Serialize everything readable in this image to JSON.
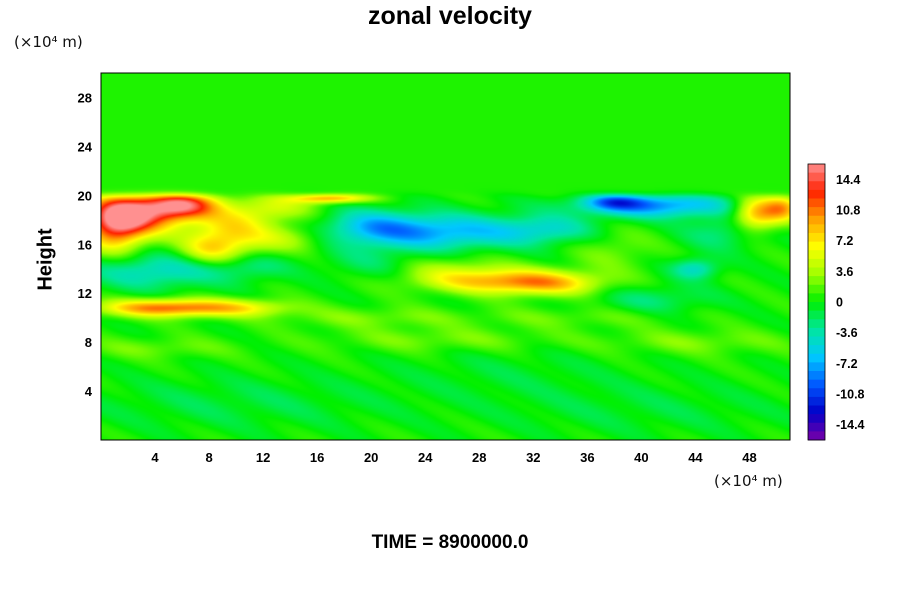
{
  "chart_data": {
    "type": "heatmap",
    "title": "zonal velocity",
    "xlabel": "",
    "ylabel": "Height",
    "x_unit": "(×10⁴ m)",
    "y_unit": "(×10⁴ m)",
    "x_ticks": [
      4,
      8,
      12,
      16,
      20,
      24,
      28,
      32,
      36,
      40,
      44,
      48
    ],
    "y_ticks": [
      4,
      8,
      12,
      16,
      20,
      24,
      28
    ],
    "xlim": [
      0,
      51
    ],
    "ylim": [
      0,
      30
    ],
    "colorbar_ticks": [
      "14.4",
      "10.8",
      "7.2",
      "3.6",
      "0",
      "-3.6",
      "-7.2",
      "-10.8",
      "-14.4"
    ],
    "colorbar_range": [
      -16.2,
      16.2
    ],
    "colorscale": [
      "#7a00a8",
      "#0000c8",
      "#0058ff",
      "#00c8ff",
      "#00e6a0",
      "#00f000",
      "#a0ff00",
      "#ffff00",
      "#ffa000",
      "#ff2000",
      "#ff9090"
    ],
    "background_value": 0.3,
    "features": [
      {
        "x": 2.5,
        "y": 18.5,
        "sx": 2.2,
        "sy": 1.2,
        "v": 13
      },
      {
        "x": 6,
        "y": 19.2,
        "sx": 1.8,
        "sy": 0.8,
        "v": 13
      },
      {
        "x": 1,
        "y": 17.5,
        "sx": 1.5,
        "sy": 1.5,
        "v": 10
      },
      {
        "x": 9.5,
        "y": 17,
        "sx": 2.2,
        "sy": 1.5,
        "v": 7
      },
      {
        "x": 8,
        "y": 15.5,
        "sx": 1.5,
        "sy": 0.8,
        "v": 4
      },
      {
        "x": 14,
        "y": 16.5,
        "sx": 2,
        "sy": 0.8,
        "v": 3
      },
      {
        "x": 13,
        "y": 19,
        "sx": 2,
        "sy": 0.8,
        "v": 4
      },
      {
        "x": 17,
        "y": 19.8,
        "sx": 2,
        "sy": 0.3,
        "v": 10
      },
      {
        "x": 5,
        "y": 10.8,
        "sx": 3.5,
        "sy": 0.5,
        "v": 11
      },
      {
        "x": 11,
        "y": 10.8,
        "sx": 2.5,
        "sy": 0.5,
        "v": 4
      },
      {
        "x": 4,
        "y": 13.8,
        "sx": 3.5,
        "sy": 1,
        "v": -5
      },
      {
        "x": 11,
        "y": 14.2,
        "sx": 2,
        "sy": 0.8,
        "v": -3
      },
      {
        "x": 25,
        "y": 17,
        "sx": 4.5,
        "sy": 1,
        "v": -7.5
      },
      {
        "x": 20,
        "y": 17.5,
        "sx": 2.5,
        "sy": 1,
        "v": -4.5
      },
      {
        "x": 33,
        "y": 17.2,
        "sx": 2.5,
        "sy": 0.8,
        "v": -4
      },
      {
        "x": 29,
        "y": 13,
        "sx": 4,
        "sy": 0.7,
        "v": 6.5
      },
      {
        "x": 33,
        "y": 12.8,
        "sx": 3,
        "sy": 0.7,
        "v": 6
      },
      {
        "x": 26,
        "y": 14,
        "sx": 3,
        "sy": 0.8,
        "v": 2.5
      },
      {
        "x": 41,
        "y": 19.2,
        "sx": 4,
        "sy": 0.7,
        "v": -8.5
      },
      {
        "x": 38,
        "y": 19.5,
        "sx": 1.5,
        "sy": 0.5,
        "v": -6
      },
      {
        "x": 48.5,
        "y": 18.5,
        "sx": 1.2,
        "sy": 1,
        "v": 9
      },
      {
        "x": 50.5,
        "y": 19,
        "sx": 1,
        "sy": 0.8,
        "v": 8
      },
      {
        "x": 44,
        "y": 14,
        "sx": 1.2,
        "sy": 0.6,
        "v": -5
      },
      {
        "x": 46,
        "y": 17,
        "sx": 2,
        "sy": 1,
        "v": -3
      },
      {
        "x": 20,
        "y": 10,
        "sx": 5,
        "sy": 0.6,
        "v": 2
      },
      {
        "x": 35,
        "y": 10,
        "sx": 5,
        "sy": 0.6,
        "v": 1.5
      },
      {
        "x": 38,
        "y": 15.5,
        "sx": 2,
        "sy": 1.2,
        "v": 2
      },
      {
        "x": 20,
        "y": 14.5,
        "sx": 2.5,
        "sy": 1,
        "v": -2
      },
      {
        "x": 41,
        "y": 11.5,
        "sx": 3,
        "sy": 0.8,
        "v": -2.5
      },
      {
        "x": 25,
        "y": 8.2,
        "sx": 6,
        "sy": 0.7,
        "v": 2
      },
      {
        "x": 4,
        "y": 7.5,
        "sx": 4,
        "sy": 0.6,
        "v": 1.8
      },
      {
        "x": 44,
        "y": 8,
        "sx": 5,
        "sy": 0.7,
        "v": 2
      },
      {
        "x": 30,
        "y": 5.5,
        "sx": 6,
        "sy": 1.5,
        "v": -1
      },
      {
        "x": 10,
        "y": 3,
        "sx": 8,
        "sy": 1.5,
        "v": -1.5
      },
      {
        "x": 40,
        "y": 2.5,
        "sx": 8,
        "sy": 1.5,
        "v": -1.2
      }
    ]
  },
  "footer": "TIME = 8900000.0"
}
